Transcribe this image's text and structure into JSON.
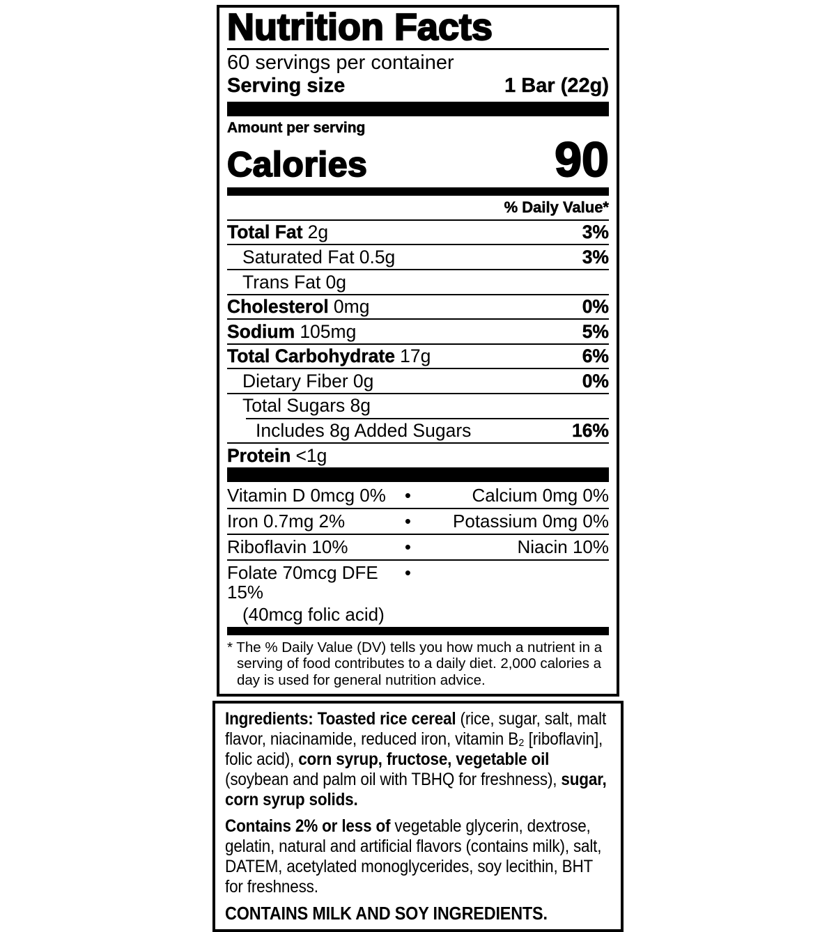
{
  "label": {
    "title": "Nutrition Facts",
    "servings_per_container": "60 servings per container",
    "serving_size_label": "Serving size",
    "serving_size_value": "1 Bar (22g)",
    "amount_per_serving": "Amount per serving",
    "calories_label": "Calories",
    "calories_value": "90",
    "daily_value_header": "% Daily Value*",
    "nutrients": [
      {
        "name": "Total Fat",
        "amount": "2g",
        "dv": "3%"
      },
      {
        "name": "Saturated Fat",
        "amount": "0.5g",
        "dv": "3%"
      },
      {
        "name": "Trans Fat",
        "amount": "0g",
        "dv": ""
      },
      {
        "name": "Cholesterol",
        "amount": "0mg",
        "dv": "0%"
      },
      {
        "name": "Sodium",
        "amount": "105mg",
        "dv": "5%"
      },
      {
        "name": "Total Carbohydrate",
        "amount": "17g",
        "dv": "6%"
      },
      {
        "name": "Dietary Fiber",
        "amount": "0g",
        "dv": "0%"
      },
      {
        "name": "Total Sugars",
        "amount": "8g",
        "dv": ""
      },
      {
        "name": "Includes 8g Added Sugars",
        "amount": "",
        "dv": "16%"
      },
      {
        "name": "Protein",
        "amount": "<1g",
        "dv": ""
      }
    ],
    "bullet": "•",
    "micronutrients": [
      {
        "left": "Vitamin D 0mcg 0%",
        "right": "Calcium 0mg 0%"
      },
      {
        "left": "Iron 0.7mg 2%",
        "right": "Potassium 0mg 0%"
      },
      {
        "left": "Riboflavin 10%",
        "right": "Niacin 10%"
      },
      {
        "left": "Folate 70mcg DFE 15%",
        "left_sub": "(40mcg folic acid)",
        "right": ""
      }
    ],
    "footnote": "* The % Daily Value (DV) tells you how much a nutrient in a serving of food contributes to a daily diet. 2,000 calories a day is used for general nutrition advice."
  },
  "ingredients": {
    "para1": [
      {
        "t": "Ingredients: Toasted rice cereal ",
        "b": true
      },
      {
        "t": "(rice, sugar, salt, malt flavor, niacinamide, reduced iron, vitamin B₂ [riboflavin], folic acid), ",
        "b": false
      },
      {
        "t": "corn syrup, fructose, vegetable oil ",
        "b": true
      },
      {
        "t": "(soybean and palm oil with TBHQ for freshness), ",
        "b": false
      },
      {
        "t": "sugar, corn syrup solids.",
        "b": true
      }
    ],
    "para2": [
      {
        "t": "Contains 2% or less of ",
        "b": true
      },
      {
        "t": "vegetable glycerin, dextrose, gelatin, natural and artificial flavors (contains milk), salt, DATEM, acetylated monoglycerides, soy lecithin, BHT for freshness.",
        "b": false
      }
    ],
    "allergen": "CONTAINS MILK AND SOY INGREDIENTS."
  }
}
